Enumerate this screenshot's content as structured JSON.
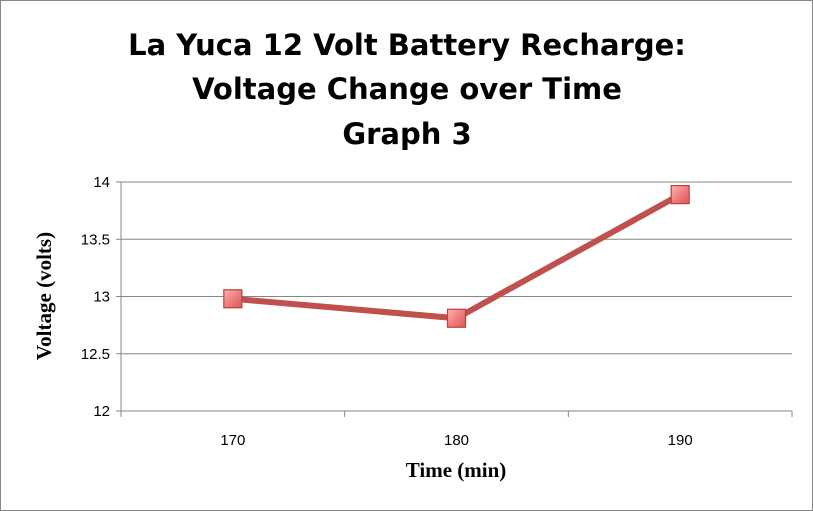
{
  "chart_data": {
    "type": "line",
    "title_lines": [
      "La Yuca 12 Volt Battery Recharge:",
      "Voltage Change over Time",
      "Graph 3"
    ],
    "xlabel": "Time (min)",
    "ylabel": "Voltage (volts)",
    "categories": [
      "170",
      "180",
      "190"
    ],
    "y_ticks": [
      "12",
      "12.5",
      "13",
      "13.5",
      "14"
    ],
    "ylim": [
      12,
      14
    ],
    "y_tick_step": 0.5,
    "grid": "horizontal",
    "legend": "none",
    "series": [
      {
        "values": [
          12.98,
          12.81,
          13.89
        ],
        "color": "#c0504d",
        "marker_fill": "#e97777",
        "marker": "square"
      }
    ]
  }
}
